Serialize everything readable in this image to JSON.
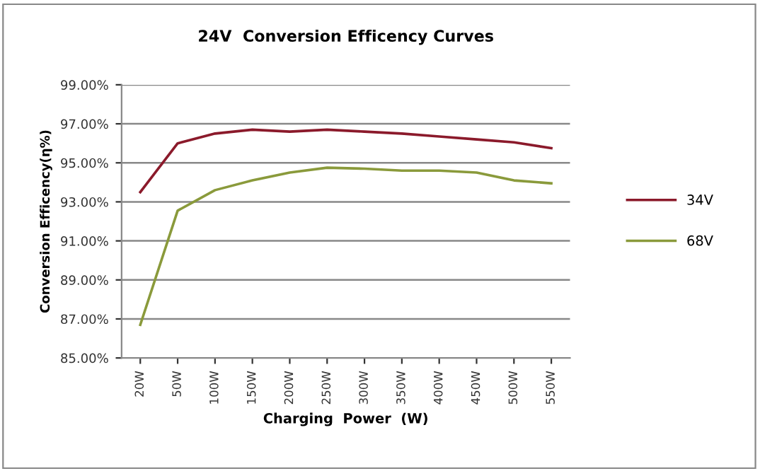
{
  "chart_data": {
    "type": "line",
    "title": "24V  Conversion Efficency Curves",
    "xlabel": "Charging  Power  (W)",
    "ylabel": "Conversion Efficency(η%)",
    "categories": [
      "20W",
      "50W",
      "100W",
      "150W",
      "200W",
      "250W",
      "300W",
      "350W",
      "400W",
      "450W",
      "500W",
      "550W"
    ],
    "series": [
      {
        "name": "34V",
        "color": "#8b1a2b",
        "values": [
          93.5,
          96.0,
          96.5,
          96.7,
          96.6,
          96.7,
          96.6,
          96.5,
          96.35,
          96.2,
          96.05,
          95.75
        ]
      },
      {
        "name": "68V",
        "color": "#8a9a3b",
        "values": [
          86.7,
          92.55,
          93.6,
          94.1,
          94.5,
          94.75,
          94.7,
          94.6,
          94.6,
          94.5,
          94.1,
          93.95
        ]
      }
    ],
    "ylim": [
      85,
      99
    ],
    "yticks": [
      {
        "value": 85,
        "label": "85.00%"
      },
      {
        "value": 87,
        "label": "87.00%"
      },
      {
        "value": 89,
        "label": "89.00%"
      },
      {
        "value": 91,
        "label": "91.00%"
      },
      {
        "value": 93,
        "label": "93.00%"
      },
      {
        "value": 95,
        "label": "95.00%"
      },
      {
        "value": 97,
        "label": "97.00%"
      },
      {
        "value": 99,
        "label": "99.00%"
      }
    ],
    "grid": "y",
    "legend": "right",
    "marker": "none",
    "line_style": "solid"
  }
}
